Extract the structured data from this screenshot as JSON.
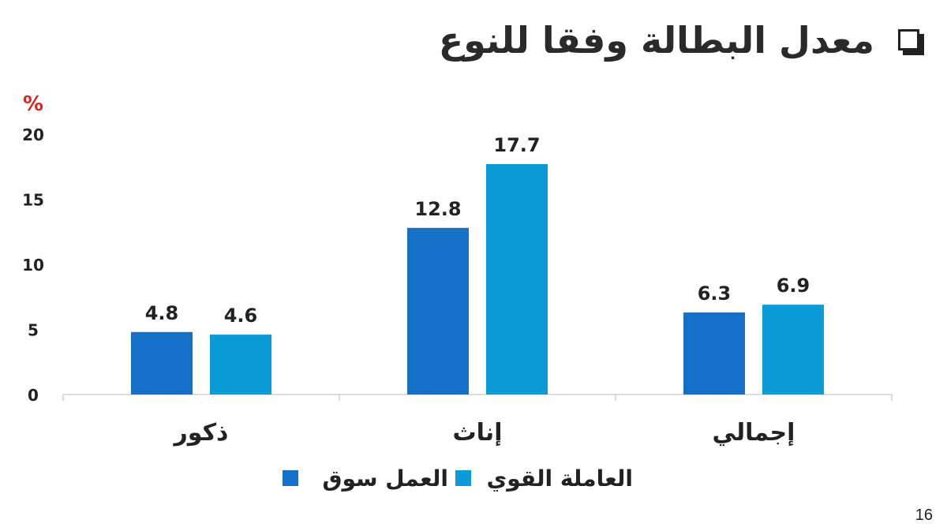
{
  "slide": {
    "title": "معدل البطالة وفقا للنوع",
    "page_number": "16"
  },
  "colors": {
    "series_1": "#1570c8",
    "series_2": "#0a9bd8",
    "unit": "#d9261c",
    "text": "#222222",
    "axis": "#d0d0d0"
  },
  "chart_data": {
    "type": "bar",
    "ylabel": "%",
    "ylim": [
      0,
      20
    ],
    "yticks": [
      0,
      5,
      10,
      15,
      20
    ],
    "categories": [
      "ذكور",
      "إناث",
      "إجمالي"
    ],
    "series": [
      {
        "name": "سوق العمل",
        "values": [
          4.8,
          12.8,
          6.3
        ],
        "labels": [
          "4.8",
          "12.8",
          "6.3"
        ]
      },
      {
        "name": "القوي العاملة",
        "values": [
          4.6,
          17.7,
          6.9
        ],
        "labels": [
          "4.6",
          "17.7",
          "6.9"
        ]
      }
    ],
    "legend_labels": [
      "العمل سوق",
      "العاملة القوي"
    ],
    "legend": "bottom",
    "grid": false
  }
}
